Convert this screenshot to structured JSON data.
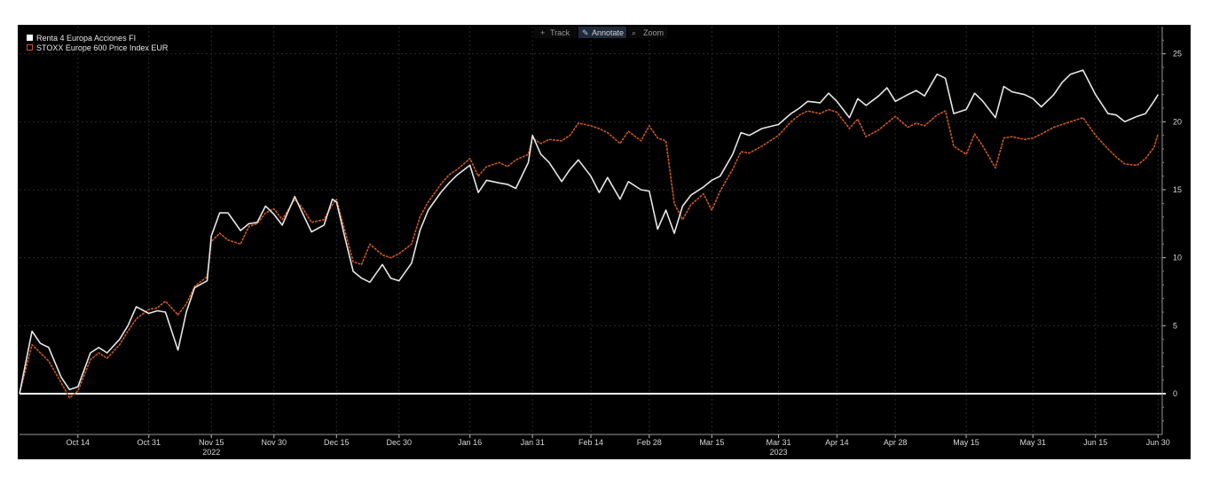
{
  "toolbar": {
    "items": [
      {
        "label": "Track",
        "icon": "crosshair-icon",
        "active": false
      },
      {
        "label": "Annotate",
        "icon": "pencil-icon",
        "active": true
      },
      {
        "label": "Zoom",
        "icon": "magnifier-icon",
        "active": false
      }
    ]
  },
  "colors": {
    "background": "#000000",
    "fund": "#e6e6e6",
    "index": "#c8571e",
    "grid": "#2a2a2a",
    "zero_line": "#ffffff"
  },
  "chart_data": {
    "type": "line",
    "title": "",
    "xlabel": "",
    "ylabel": "",
    "ylim": [
      -3,
      27
    ],
    "y_ticks": [
      0,
      5,
      10,
      15,
      20,
      25
    ],
    "y_axis_side": "right",
    "grid": true,
    "legend_placement": "top-left",
    "x_range": [
      "2022-09-30",
      "2023-07-01"
    ],
    "x_ticks": [
      {
        "date": "2022-10-14",
        "label": "Oct 14"
      },
      {
        "date": "2022-10-31",
        "label": "Oct 31"
      },
      {
        "date": "2022-11-15",
        "label": "Nov 15"
      },
      {
        "date": "2022-11-30",
        "label": "Nov 30"
      },
      {
        "date": "2022-12-15",
        "label": "Dec 15"
      },
      {
        "date": "2022-12-30",
        "label": "Dec 30"
      },
      {
        "date": "2023-01-16",
        "label": "Jan 16"
      },
      {
        "date": "2023-01-31",
        "label": "Jan 31"
      },
      {
        "date": "2023-02-14",
        "label": "Feb 14"
      },
      {
        "date": "2023-02-28",
        "label": "Feb 28"
      },
      {
        "date": "2023-03-15",
        "label": "Mar 15"
      },
      {
        "date": "2023-03-31",
        "label": "Mar 31"
      },
      {
        "date": "2023-04-14",
        "label": "Apr 14"
      },
      {
        "date": "2023-04-28",
        "label": "Apr 28"
      },
      {
        "date": "2023-05-15",
        "label": "May 15"
      },
      {
        "date": "2023-05-31",
        "label": "May 31"
      },
      {
        "date": "2023-06-15",
        "label": "Jun 15"
      },
      {
        "date": "2023-06-30",
        "label": "Jun 30"
      }
    ],
    "year_labels": [
      {
        "date": "2022-11-15",
        "label": "2022"
      },
      {
        "date": "2023-03-31",
        "label": "2023"
      }
    ],
    "series": [
      {
        "name": "Renta 4 Europa Acciones FI",
        "color": "#e6e6e6",
        "points": [
          [
            "2022-09-30",
            0.0
          ],
          [
            "2022-10-03",
            4.6
          ],
          [
            "2022-10-05",
            3.7
          ],
          [
            "2022-10-07",
            3.4
          ],
          [
            "2022-10-10",
            1.2
          ],
          [
            "2022-10-12",
            0.3
          ],
          [
            "2022-10-14",
            0.5
          ],
          [
            "2022-10-17",
            3.0
          ],
          [
            "2022-10-19",
            3.4
          ],
          [
            "2022-10-21",
            3.0
          ],
          [
            "2022-10-24",
            4.0
          ],
          [
            "2022-10-26",
            5.0
          ],
          [
            "2022-10-28",
            6.4
          ],
          [
            "2022-10-31",
            5.9
          ],
          [
            "2022-11-02",
            6.1
          ],
          [
            "2022-11-04",
            6.0
          ],
          [
            "2022-11-07",
            3.2
          ],
          [
            "2022-11-09",
            6.0
          ],
          [
            "2022-11-11",
            7.8
          ],
          [
            "2022-11-14",
            8.3
          ],
          [
            "2022-11-15",
            11.6
          ],
          [
            "2022-11-17",
            13.3
          ],
          [
            "2022-11-19",
            13.3
          ],
          [
            "2022-11-22",
            12.0
          ],
          [
            "2022-11-24",
            12.5
          ],
          [
            "2022-11-26",
            12.6
          ],
          [
            "2022-11-28",
            13.8
          ],
          [
            "2022-11-30",
            13.2
          ],
          [
            "2022-12-02",
            12.4
          ],
          [
            "2022-12-05",
            14.5
          ],
          [
            "2022-12-07",
            13.2
          ],
          [
            "2022-12-09",
            11.9
          ],
          [
            "2022-12-12",
            12.4
          ],
          [
            "2022-12-14",
            14.3
          ],
          [
            "2022-12-15",
            14.1
          ],
          [
            "2022-12-17",
            11.5
          ],
          [
            "2022-12-19",
            9.0
          ],
          [
            "2022-12-21",
            8.5
          ],
          [
            "2022-12-23",
            8.2
          ],
          [
            "2022-12-26",
            9.5
          ],
          [
            "2022-12-28",
            8.5
          ],
          [
            "2022-12-30",
            8.3
          ],
          [
            "2023-01-02",
            9.6
          ],
          [
            "2023-01-04",
            12.0
          ],
          [
            "2023-01-06",
            13.5
          ],
          [
            "2023-01-09",
            14.8
          ],
          [
            "2023-01-11",
            15.5
          ],
          [
            "2023-01-13",
            16.1
          ],
          [
            "2023-01-16",
            16.8
          ],
          [
            "2023-01-18",
            14.8
          ],
          [
            "2023-01-20",
            15.7
          ],
          [
            "2023-01-23",
            15.5
          ],
          [
            "2023-01-25",
            15.4
          ],
          [
            "2023-01-27",
            15.1
          ],
          [
            "2023-01-30",
            17.0
          ],
          [
            "2023-01-31",
            19.0
          ],
          [
            "2023-02-02",
            17.6
          ],
          [
            "2023-02-04",
            17.0
          ],
          [
            "2023-02-07",
            15.6
          ],
          [
            "2023-02-09",
            16.5
          ],
          [
            "2023-02-11",
            17.2
          ],
          [
            "2023-02-14",
            16.0
          ],
          [
            "2023-02-16",
            14.8
          ],
          [
            "2023-02-18",
            15.9
          ],
          [
            "2023-02-21",
            14.3
          ],
          [
            "2023-02-23",
            15.6
          ],
          [
            "2023-02-26",
            15.0
          ],
          [
            "2023-02-28",
            14.9
          ],
          [
            "2023-03-02",
            12.1
          ],
          [
            "2023-03-04",
            13.5
          ],
          [
            "2023-03-06",
            11.8
          ],
          [
            "2023-03-08",
            13.8
          ],
          [
            "2023-03-10",
            14.6
          ],
          [
            "2023-03-13",
            15.2
          ],
          [
            "2023-03-15",
            15.7
          ],
          [
            "2023-03-17",
            16.0
          ],
          [
            "2023-03-20",
            17.6
          ],
          [
            "2023-03-22",
            19.2
          ],
          [
            "2023-03-24",
            19.0
          ],
          [
            "2023-03-27",
            19.5
          ],
          [
            "2023-03-31",
            19.8
          ],
          [
            "2023-04-03",
            20.6
          ],
          [
            "2023-04-05",
            21.0
          ],
          [
            "2023-04-07",
            21.5
          ],
          [
            "2023-04-10",
            21.4
          ],
          [
            "2023-04-12",
            22.1
          ],
          [
            "2023-04-14",
            21.5
          ],
          [
            "2023-04-17",
            20.3
          ],
          [
            "2023-04-19",
            21.7
          ],
          [
            "2023-04-21",
            21.2
          ],
          [
            "2023-04-24",
            21.9
          ],
          [
            "2023-04-26",
            22.5
          ],
          [
            "2023-04-28",
            21.5
          ],
          [
            "2023-05-01",
            22.0
          ],
          [
            "2023-05-03",
            22.3
          ],
          [
            "2023-05-05",
            21.9
          ],
          [
            "2023-05-08",
            23.5
          ],
          [
            "2023-05-10",
            23.2
          ],
          [
            "2023-05-12",
            20.6
          ],
          [
            "2023-05-15",
            20.9
          ],
          [
            "2023-05-17",
            22.1
          ],
          [
            "2023-05-19",
            21.5
          ],
          [
            "2023-05-22",
            20.3
          ],
          [
            "2023-05-24",
            22.6
          ],
          [
            "2023-05-26",
            22.2
          ],
          [
            "2023-05-29",
            22.0
          ],
          [
            "2023-05-31",
            21.7
          ],
          [
            "2023-06-02",
            21.1
          ],
          [
            "2023-06-05",
            22.0
          ],
          [
            "2023-06-07",
            22.9
          ],
          [
            "2023-06-09",
            23.5
          ],
          [
            "2023-06-12",
            23.8
          ],
          [
            "2023-06-15",
            22.0
          ],
          [
            "2023-06-18",
            20.6
          ],
          [
            "2023-06-20",
            20.5
          ],
          [
            "2023-06-22",
            20.0
          ],
          [
            "2023-06-25",
            20.4
          ],
          [
            "2023-06-27",
            20.6
          ],
          [
            "2023-06-29",
            21.5
          ],
          [
            "2023-06-30",
            22.0
          ]
        ]
      },
      {
        "name": "STOXX Europe 600 Price Index EUR",
        "color": "#c8571e",
        "points": [
          [
            "2022-09-30",
            0.0
          ],
          [
            "2022-10-03",
            3.6
          ],
          [
            "2022-10-05",
            3.0
          ],
          [
            "2022-10-07",
            2.4
          ],
          [
            "2022-10-10",
            0.8
          ],
          [
            "2022-10-12",
            -0.3
          ],
          [
            "2022-10-14",
            0.2
          ],
          [
            "2022-10-17",
            2.5
          ],
          [
            "2022-10-19",
            3.0
          ],
          [
            "2022-10-21",
            2.6
          ],
          [
            "2022-10-24",
            3.6
          ],
          [
            "2022-10-26",
            4.6
          ],
          [
            "2022-10-28",
            5.5
          ],
          [
            "2022-10-31",
            6.2
          ],
          [
            "2022-11-02",
            6.3
          ],
          [
            "2022-11-04",
            6.8
          ],
          [
            "2022-11-07",
            5.8
          ],
          [
            "2022-11-09",
            6.6
          ],
          [
            "2022-11-11",
            7.9
          ],
          [
            "2022-11-14",
            8.6
          ],
          [
            "2022-11-15",
            11.2
          ],
          [
            "2022-11-17",
            11.8
          ],
          [
            "2022-11-19",
            11.3
          ],
          [
            "2022-11-22",
            11.0
          ],
          [
            "2022-11-24",
            12.3
          ],
          [
            "2022-11-26",
            12.5
          ],
          [
            "2022-11-28",
            13.3
          ],
          [
            "2022-11-30",
            13.6
          ],
          [
            "2022-12-02",
            12.8
          ],
          [
            "2022-12-05",
            14.3
          ],
          [
            "2022-12-07",
            13.6
          ],
          [
            "2022-12-09",
            12.6
          ],
          [
            "2022-12-12",
            12.8
          ],
          [
            "2022-12-14",
            13.9
          ],
          [
            "2022-12-15",
            14.3
          ],
          [
            "2022-12-17",
            12.0
          ],
          [
            "2022-12-19",
            9.7
          ],
          [
            "2022-12-21",
            9.5
          ],
          [
            "2022-12-23",
            11.0
          ],
          [
            "2022-12-26",
            10.2
          ],
          [
            "2022-12-28",
            10.0
          ],
          [
            "2022-12-30",
            10.3
          ],
          [
            "2023-01-02",
            11.0
          ],
          [
            "2023-01-04",
            13.0
          ],
          [
            "2023-01-06",
            14.1
          ],
          [
            "2023-01-09",
            15.4
          ],
          [
            "2023-01-11",
            16.1
          ],
          [
            "2023-01-13",
            16.5
          ],
          [
            "2023-01-16",
            17.3
          ],
          [
            "2023-01-18",
            16.0
          ],
          [
            "2023-01-20",
            16.7
          ],
          [
            "2023-01-23",
            17.0
          ],
          [
            "2023-01-25",
            16.7
          ],
          [
            "2023-01-27",
            17.2
          ],
          [
            "2023-01-30",
            17.6
          ],
          [
            "2023-01-31",
            18.8
          ],
          [
            "2023-02-02",
            18.4
          ],
          [
            "2023-02-04",
            18.7
          ],
          [
            "2023-02-07",
            18.6
          ],
          [
            "2023-02-09",
            19.0
          ],
          [
            "2023-02-11",
            19.9
          ],
          [
            "2023-02-14",
            19.7
          ],
          [
            "2023-02-16",
            19.5
          ],
          [
            "2023-02-18",
            19.2
          ],
          [
            "2023-02-21",
            18.4
          ],
          [
            "2023-02-23",
            19.3
          ],
          [
            "2023-02-26",
            18.6
          ],
          [
            "2023-02-28",
            19.7
          ],
          [
            "2023-03-02",
            18.8
          ],
          [
            "2023-03-04",
            18.6
          ],
          [
            "2023-03-06",
            14.0
          ],
          [
            "2023-03-08",
            12.8
          ],
          [
            "2023-03-10",
            13.9
          ],
          [
            "2023-03-13",
            14.7
          ],
          [
            "2023-03-15",
            13.5
          ],
          [
            "2023-03-17",
            14.9
          ],
          [
            "2023-03-20",
            16.5
          ],
          [
            "2023-03-22",
            17.8
          ],
          [
            "2023-03-24",
            17.7
          ],
          [
            "2023-03-27",
            18.2
          ],
          [
            "2023-03-31",
            19.0
          ],
          [
            "2023-04-03",
            20.0
          ],
          [
            "2023-04-05",
            20.5
          ],
          [
            "2023-04-07",
            20.8
          ],
          [
            "2023-04-10",
            20.6
          ],
          [
            "2023-04-12",
            20.9
          ],
          [
            "2023-04-14",
            20.7
          ],
          [
            "2023-04-17",
            19.5
          ],
          [
            "2023-04-19",
            20.2
          ],
          [
            "2023-04-21",
            18.9
          ],
          [
            "2023-04-24",
            19.4
          ],
          [
            "2023-04-26",
            19.9
          ],
          [
            "2023-04-28",
            20.4
          ],
          [
            "2023-05-01",
            19.6
          ],
          [
            "2023-05-03",
            19.9
          ],
          [
            "2023-05-05",
            19.7
          ],
          [
            "2023-05-08",
            20.5
          ],
          [
            "2023-05-10",
            20.8
          ],
          [
            "2023-05-12",
            18.2
          ],
          [
            "2023-05-15",
            17.6
          ],
          [
            "2023-05-17",
            19.1
          ],
          [
            "2023-05-19",
            18.2
          ],
          [
            "2023-05-22",
            16.6
          ],
          [
            "2023-05-24",
            18.8
          ],
          [
            "2023-05-26",
            18.9
          ],
          [
            "2023-05-29",
            18.7
          ],
          [
            "2023-05-31",
            18.8
          ],
          [
            "2023-06-02",
            19.1
          ],
          [
            "2023-06-05",
            19.6
          ],
          [
            "2023-06-07",
            19.8
          ],
          [
            "2023-06-09",
            20.0
          ],
          [
            "2023-06-12",
            20.3
          ],
          [
            "2023-06-15",
            19.0
          ],
          [
            "2023-06-18",
            18.0
          ],
          [
            "2023-06-20",
            17.4
          ],
          [
            "2023-06-22",
            16.9
          ],
          [
            "2023-06-25",
            16.8
          ],
          [
            "2023-06-27",
            17.3
          ],
          [
            "2023-06-29",
            18.1
          ],
          [
            "2023-06-30",
            19.1
          ]
        ]
      }
    ]
  }
}
